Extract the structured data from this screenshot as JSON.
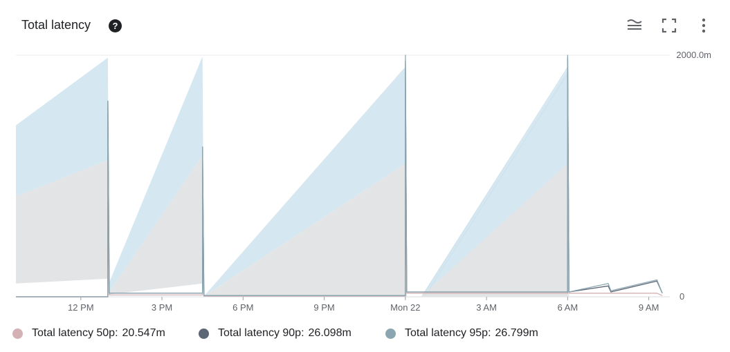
{
  "header": {
    "title": "Total latency",
    "help_icon": "help-circle-icon",
    "tools": [
      "legend-lines-icon",
      "fullscreen-icon",
      "more-vert-icon"
    ]
  },
  "chart_data": {
    "type": "area",
    "title": "Total latency",
    "ylim": [
      0,
      2000
    ],
    "y_ticks": [
      "0",
      "2000.0m"
    ],
    "x_ticks": [
      "12 PM",
      "3 PM",
      "6 PM",
      "9 PM",
      "Mon 22",
      "3 AM",
      "6 AM",
      "9 AM"
    ],
    "x_range_hours": [
      9.6,
      33.7
    ],
    "grid": true,
    "legend_position": "bottom",
    "series": [
      {
        "name": "Total latency 50p",
        "summary_value": "20.547m",
        "color": "#d4b1b4",
        "points": [
          [
            9.6,
            0
          ],
          [
            13.0,
            0
          ],
          [
            13.0,
            780
          ],
          [
            13.05,
            15
          ],
          [
            16.5,
            15
          ],
          [
            16.5,
            570
          ],
          [
            16.55,
            5
          ],
          [
            24.0,
            5
          ],
          [
            24.0,
            1200
          ],
          [
            24.05,
            30
          ],
          [
            24.6,
            30
          ],
          [
            30.0,
            30
          ],
          [
            30.0,
            1150
          ],
          [
            30.05,
            30
          ],
          [
            31.5,
            30
          ],
          [
            33.3,
            30
          ],
          [
            33.5,
            10
          ]
        ]
      },
      {
        "name": "Total latency 90p",
        "summary_value": "26.098m",
        "color": "#5c6675",
        "points": [
          [
            9.6,
            0
          ],
          [
            13.0,
            0
          ],
          [
            13.0,
            1620
          ],
          [
            13.05,
            30
          ],
          [
            16.5,
            30
          ],
          [
            16.5,
            1240
          ],
          [
            16.55,
            10
          ],
          [
            24.0,
            10
          ],
          [
            24.0,
            1950
          ],
          [
            24.05,
            40
          ],
          [
            24.6,
            40
          ],
          [
            30.0,
            40
          ],
          [
            30.0,
            1980
          ],
          [
            30.05,
            40
          ],
          [
            31.5,
            90
          ],
          [
            31.6,
            40
          ],
          [
            33.3,
            130
          ],
          [
            33.5,
            30
          ]
        ]
      },
      {
        "name": "Total latency 95p",
        "summary_value": "26.799m",
        "color": "#8ca6b1",
        "points": [
          [
            9.6,
            0
          ],
          [
            13.0,
            0
          ],
          [
            13.0,
            1620
          ],
          [
            13.05,
            30
          ],
          [
            16.5,
            30
          ],
          [
            16.5,
            1240
          ],
          [
            16.55,
            10
          ],
          [
            24.0,
            10
          ],
          [
            24.0,
            2000
          ],
          [
            24.05,
            40
          ],
          [
            24.6,
            40
          ],
          [
            30.0,
            40
          ],
          [
            30.0,
            2000
          ],
          [
            30.05,
            40
          ],
          [
            31.5,
            110
          ],
          [
            31.6,
            50
          ],
          [
            33.3,
            140
          ],
          [
            33.5,
            30
          ]
        ]
      }
    ],
    "bands": [
      {
        "name": "upper band",
        "color": "#d5e8f1",
        "upper": [
          [
            9.6,
            1420
          ],
          [
            13.0,
            1980
          ],
          [
            13.05,
            120
          ],
          [
            16.5,
            1990
          ],
          [
            16.55,
            0
          ],
          [
            24.0,
            1900
          ],
          [
            24.05,
            0
          ],
          [
            24.6,
            0
          ],
          [
            30.0,
            1890
          ],
          [
            30.05,
            0
          ],
          [
            33.6,
            0
          ]
        ],
        "lower": [
          [
            9.6,
            830
          ],
          [
            13.0,
            1130
          ],
          [
            13.05,
            40
          ],
          [
            16.5,
            1170
          ],
          [
            16.55,
            0
          ],
          [
            24.0,
            1100
          ],
          [
            24.05,
            0
          ],
          [
            24.6,
            0
          ],
          [
            30.0,
            1100
          ],
          [
            30.05,
            0
          ],
          [
            33.6,
            0
          ]
        ]
      },
      {
        "name": "lower band",
        "color": "#e3e4e6",
        "upper": [
          [
            9.6,
            830
          ],
          [
            13.0,
            1130
          ],
          [
            13.05,
            40
          ],
          [
            16.5,
            1170
          ],
          [
            16.55,
            0
          ],
          [
            24.0,
            1100
          ],
          [
            24.05,
            0
          ],
          [
            24.6,
            0
          ],
          [
            30.0,
            1100
          ],
          [
            30.05,
            0
          ],
          [
            33.6,
            0
          ]
        ],
        "lower": [
          [
            9.6,
            110
          ],
          [
            13.0,
            150
          ],
          [
            13.05,
            20
          ],
          [
            16.5,
            110
          ],
          [
            16.55,
            0
          ],
          [
            24.0,
            0
          ],
          [
            24.05,
            0
          ],
          [
            24.6,
            0
          ],
          [
            30.0,
            0
          ],
          [
            30.05,
            0
          ],
          [
            33.6,
            0
          ]
        ]
      }
    ],
    "ghost_lines": [
      {
        "color": "#d9e6ee",
        "points": [
          [
            16.55,
            0
          ],
          [
            24.0,
            1900
          ]
        ]
      },
      {
        "color": "#e6e6e6",
        "points": [
          [
            16.55,
            0
          ],
          [
            24.0,
            1100
          ]
        ]
      },
      {
        "color": "#cfe2ec",
        "points": [
          [
            24.6,
            0
          ],
          [
            30.0,
            1900
          ]
        ]
      },
      {
        "color": "#cfe2ec",
        "points": [
          [
            24.7,
            0
          ],
          [
            30.0,
            1850
          ]
        ]
      },
      {
        "color": "#e3e4e6",
        "points": [
          [
            24.6,
            0
          ],
          [
            30.0,
            1100
          ]
        ]
      },
      {
        "color": "#e3e4e6",
        "points": [
          [
            24.7,
            0
          ],
          [
            30.0,
            1020
          ]
        ]
      }
    ]
  }
}
